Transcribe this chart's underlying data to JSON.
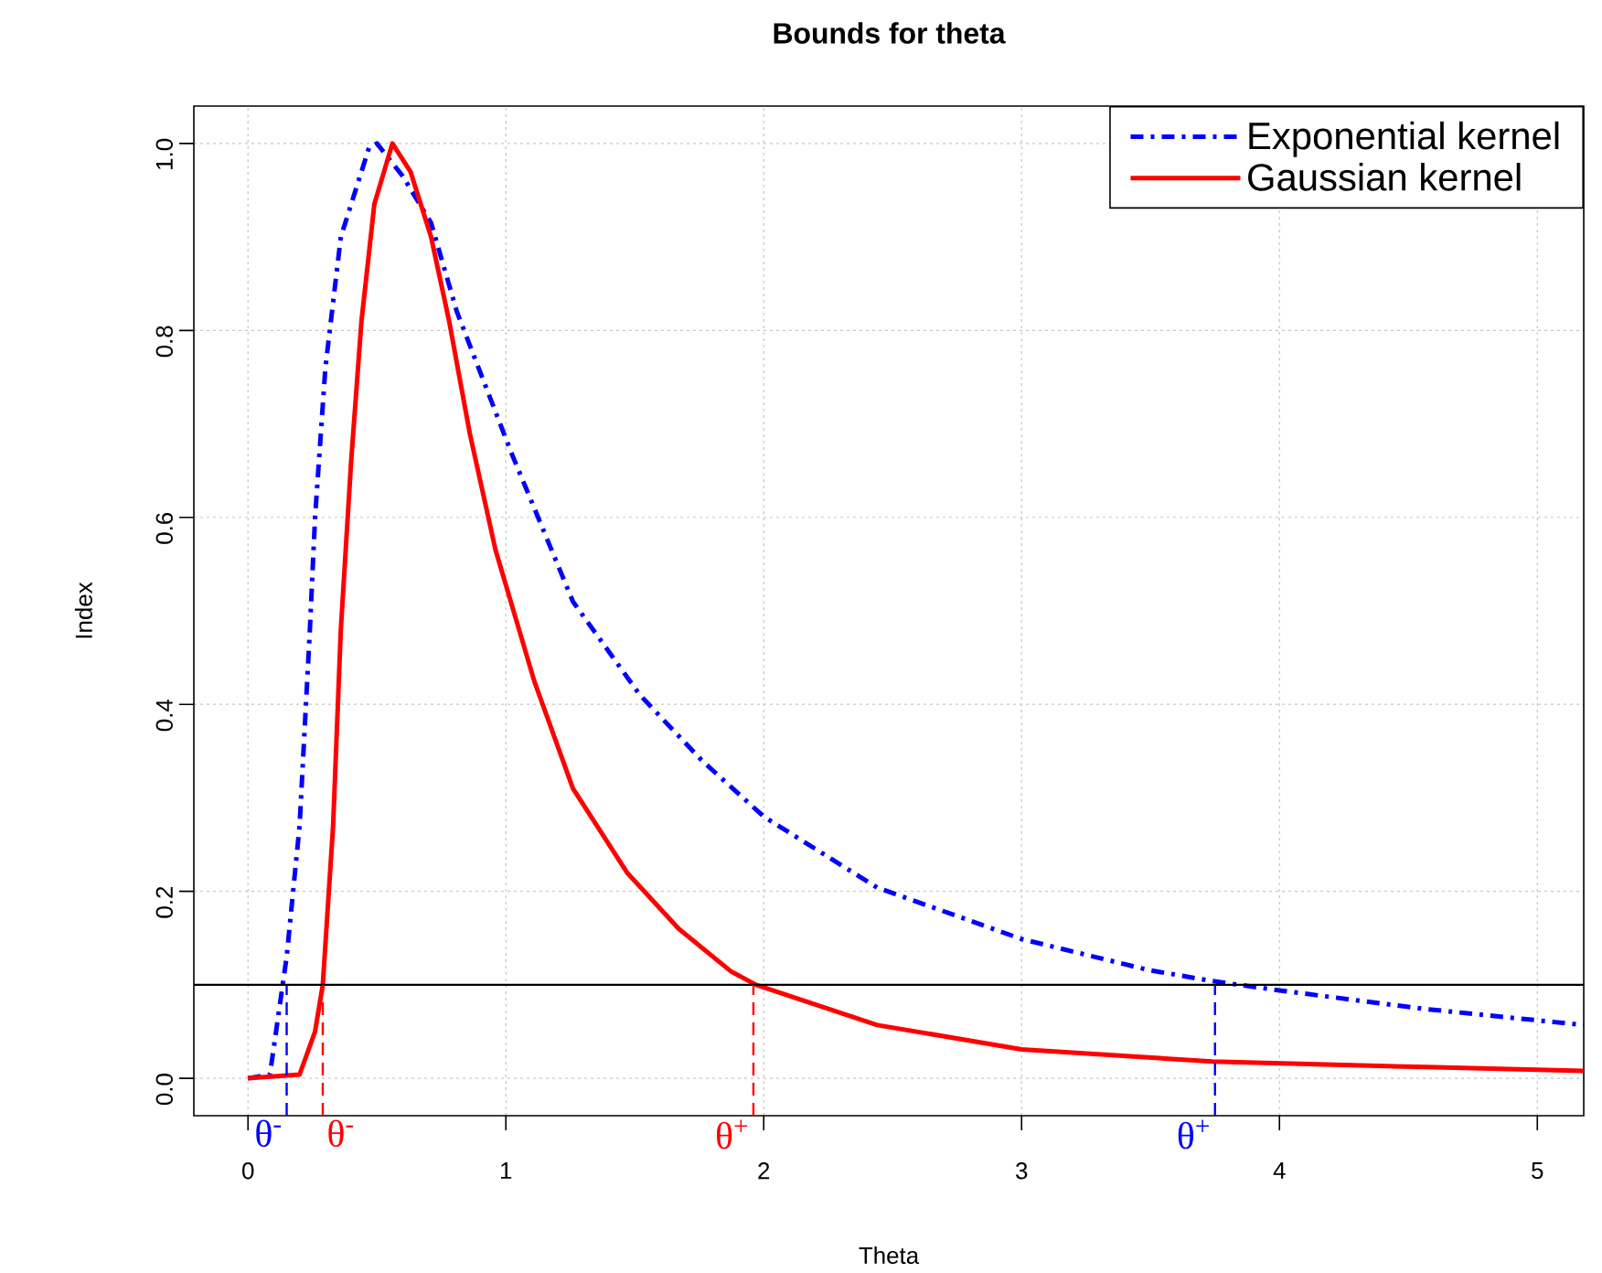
{
  "chart_data": {
    "type": "line",
    "title": "Bounds for theta",
    "xlabel": "Theta",
    "ylabel": "Index",
    "xlim": [
      -0.21,
      5.18
    ],
    "ylim": [
      -0.04,
      1.04
    ],
    "xticks": [
      0,
      1,
      2,
      3,
      4,
      5
    ],
    "yticks": [
      {
        "value": 0,
        "label": "0.0"
      },
      {
        "value": 0.2,
        "label": "0.2"
      },
      {
        "value": 0.4,
        "label": "0.4"
      },
      {
        "value": 0.6,
        "label": "0.6"
      },
      {
        "value": 0.8,
        "label": "0.8"
      },
      {
        "value": 1,
        "label": "1.0"
      }
    ],
    "grid": true,
    "legend": "top right",
    "series": [
      {
        "name": "Exponential kernel",
        "color": "#0000ff",
        "line_style": "dashdotted",
        "x": [
          0,
          0.085,
          0.15,
          0.2,
          0.24,
          0.26,
          0.3,
          0.36,
          0.47,
          0.5,
          0.6,
          0.71,
          0.81,
          1.02,
          1.26,
          1.52,
          1.76,
          2.0,
          2.44,
          3.0,
          3.49,
          3.74,
          4.0,
          4.57,
          5.18
        ],
        "values": [
          0,
          0.004,
          0.13,
          0.27,
          0.48,
          0.6,
          0.76,
          0.9,
          0.996,
          1.0,
          0.965,
          0.915,
          0.82,
          0.67,
          0.51,
          0.41,
          0.34,
          0.28,
          0.204,
          0.149,
          0.116,
          0.104,
          0.094,
          0.074,
          0.057
        ]
      },
      {
        "name": "Gaussian kernel",
        "color": "#ff0000",
        "line_style": "solid",
        "x": [
          0,
          0.2,
          0.26,
          0.29,
          0.33,
          0.36,
          0.4,
          0.44,
          0.49,
          0.56,
          0.63,
          0.71,
          0.78,
          0.86,
          0.96,
          1.11,
          1.26,
          1.47,
          1.67,
          1.875,
          1.97,
          2.44,
          3.0,
          3.74,
          4.57,
          5.18
        ],
        "values": [
          0,
          0.004,
          0.05,
          0.1,
          0.27,
          0.48,
          0.66,
          0.81,
          0.935,
          1.0,
          0.97,
          0.9,
          0.81,
          0.69,
          0.565,
          0.425,
          0.31,
          0.22,
          0.16,
          0.114,
          0.1,
          0.057,
          0.031,
          0.018,
          0.012,
          0.008
        ]
      }
    ],
    "ref_lines": [
      {
        "axis": "y",
        "value": 0.1,
        "color": "#000000",
        "line_style": "solid"
      },
      {
        "axis": "x",
        "value": 0.15,
        "label": "θ$^{-}$",
        "color": "#0000ff",
        "line_style": "dashed"
      },
      {
        "axis": "x",
        "value": 0.29,
        "label": "θ$^{-}$",
        "color": "#ff0000",
        "line_style": "dashed"
      },
      {
        "axis": "x",
        "value": 1.96,
        "label": "θ$^{+}$",
        "color": "#ff0000",
        "line_style": "dashed"
      },
      {
        "axis": "x",
        "value": 3.75,
        "label": "θ$^{+}$",
        "color": "#0000ff",
        "line_style": "dashed"
      }
    ]
  }
}
